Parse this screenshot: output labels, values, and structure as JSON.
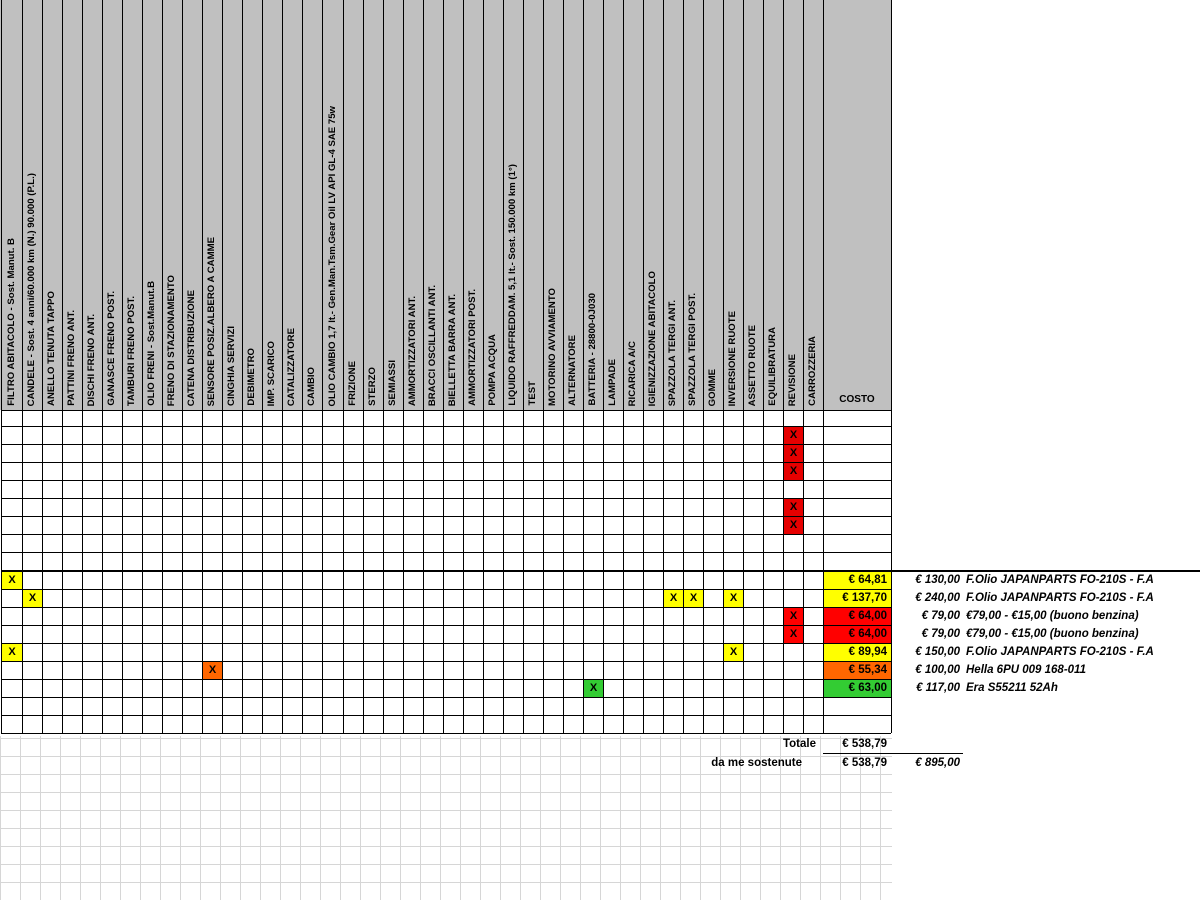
{
  "headers": [
    "FILTRO ABITACOLO - Sost. Manut. B",
    "CANDELE - Sost. 4 anni/60.000 km (N.) 90.000 (P.L.)",
    "ANELLO TENUTA TAPPO",
    "PATTINI FRENO ANT.",
    "DISCHI FRENO ANT.",
    "GANASCE FRENO POST.",
    "TAMBURI FRENO POST.",
    "OLIO FRENI - Sost.Manut.B",
    "FRENO DI STAZIONAMENTO",
    "CATENA DISTRIBUZIONE",
    "SENSORE POSIZ.ALBERO A CAMME",
    "CINGHIA SERVIZI",
    "DEBIMETRO",
    "IMP. SCARICO",
    "CATALIZZATORE",
    "CAMBIO",
    "OLIO CAMBIO 1,7 lt.- Gen.Man.Tsm.Gear Oil LV API GL-4 SAE 75w",
    "FRIZIONE",
    "STERZO",
    "SEMIASSI",
    "AMMORTIZZATORI ANT.",
    "BRACCI OSCILLANTI ANT.",
    "BIELLETTA BARRA ANT.",
    "AMMORTIZZATORI POST.",
    "POMPA ACQUA",
    "LIQUIDO RAFFREDDAM. 5,1 lt.- Sost. 150.000 km (1°)",
    "TEST",
    "MOTORINO AVVIAMENTO",
    "ALTERNATORE",
    "BATTERIA - 28800-0J030",
    "LAMPADE",
    "RICARICA A/C",
    "IGIENIZZAZIONE ABITACOLO",
    "SPAZZOLA TERGI ANT.",
    "SPAZZOLA TERGI POST.",
    "GOMME",
    "INVERSIONE RUOTE",
    "ASSETTO RUOTE",
    "EQUILIBRATURA",
    "REVISIONE",
    "CARROZZERIA"
  ],
  "costo_header": "COSTO",
  "mark_symbol": "X",
  "colors": {
    "yellow": "#ffff00",
    "red": "#ff0000",
    "orange": "#ff6600",
    "green": "#33cc33",
    "dark_red_x": "#e60000"
  },
  "upper_marks": [
    {
      "row": 2,
      "col": 39
    },
    {
      "row": 3,
      "col": 39
    },
    {
      "row": 4,
      "col": 39
    },
    {
      "row": 6,
      "col": 39
    },
    {
      "row": 7,
      "col": 39
    }
  ],
  "lower_rows": [
    {
      "marks": [
        {
          "col": 0,
          "color": "yellow"
        }
      ],
      "cost": "€ 64,81",
      "cost_color": "yellow",
      "price": "€ 130,00",
      "note": "F.Olio JAPANPARTS FO-210S - F.A"
    },
    {
      "marks": [
        {
          "col": 1,
          "color": "yellow"
        },
        {
          "col": 33,
          "color": "yellow"
        },
        {
          "col": 34,
          "color": "yellow"
        },
        {
          "col": 36,
          "color": "yellow"
        }
      ],
      "cost": "€ 137,70",
      "cost_color": "yellow",
      "price": "€ 240,00",
      "note": "F.Olio JAPANPARTS FO-210S - F.A"
    },
    {
      "marks": [
        {
          "col": 39,
          "color": "red"
        }
      ],
      "cost": "€ 64,00",
      "cost_color": "red",
      "price": "€ 79,00",
      "note": "€79,00 - €15,00 (buono benzina)"
    },
    {
      "marks": [
        {
          "col": 39,
          "color": "red"
        }
      ],
      "cost": "€ 64,00",
      "cost_color": "red",
      "price": "€ 79,00",
      "note": "€79,00 - €15,00 (buono benzina)"
    },
    {
      "marks": [
        {
          "col": 0,
          "color": "yellow"
        },
        {
          "col": 36,
          "color": "yellow"
        }
      ],
      "cost": "€ 89,94",
      "cost_color": "yellow",
      "price": "€ 150,00",
      "note": "F.Olio JAPANPARTS FO-210S - F.A"
    },
    {
      "marks": [
        {
          "col": 10,
          "color": "orange"
        }
      ],
      "cost": "€ 55,34",
      "cost_color": "orange",
      "price": "€ 100,00",
      "note": "Hella 6PU 009 168-011"
    },
    {
      "marks": [
        {
          "col": 29,
          "color": "green"
        }
      ],
      "cost": "€ 63,00",
      "cost_color": "green",
      "price": "€ 117,00",
      "note": "Era S55211 52Ah"
    }
  ],
  "totale_label": "Totale",
  "totale_value": "€ 538,79",
  "sostenute_label": "da me sostenute",
  "sostenute_value": "€ 538,79",
  "sostenute_extra": "€ 895,00"
}
